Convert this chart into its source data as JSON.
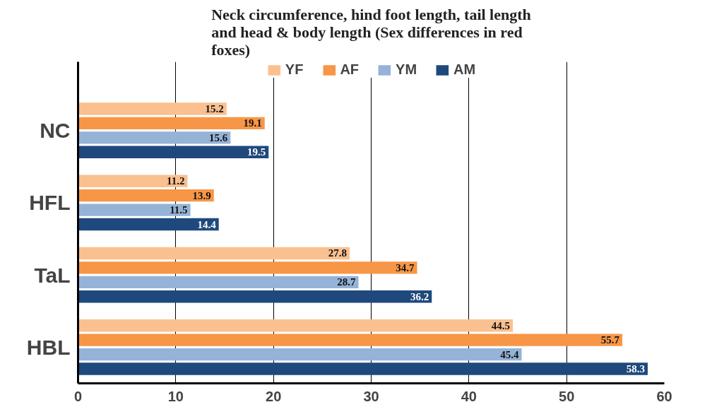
{
  "chart_data": {
    "type": "bar",
    "orientation": "horizontal",
    "title": "Neck circumference, hind foot length, tail length and head & body length (Sex differences in red foxes)",
    "categories": [
      "NC",
      "HFL",
      "TaL",
      "HBL"
    ],
    "series": [
      {
        "name": "YF",
        "color": "#fac090",
        "values": [
          15.2,
          11.2,
          27.8,
          44.5
        ]
      },
      {
        "name": "AF",
        "color": "#f79646",
        "values": [
          19.1,
          13.9,
          34.7,
          55.7
        ]
      },
      {
        "name": "YM",
        "color": "#95b3d7",
        "values": [
          15.6,
          11.5,
          28.7,
          45.4
        ]
      },
      {
        "name": "AM",
        "color": "#1f497d",
        "values": [
          19.5,
          14.4,
          36.2,
          58.3
        ]
      }
    ],
    "xlim": [
      0,
      60
    ],
    "xticks": [
      0,
      10,
      20,
      30,
      40,
      50,
      60
    ],
    "grid": "x",
    "legend": "top",
    "data_labels": true
  }
}
